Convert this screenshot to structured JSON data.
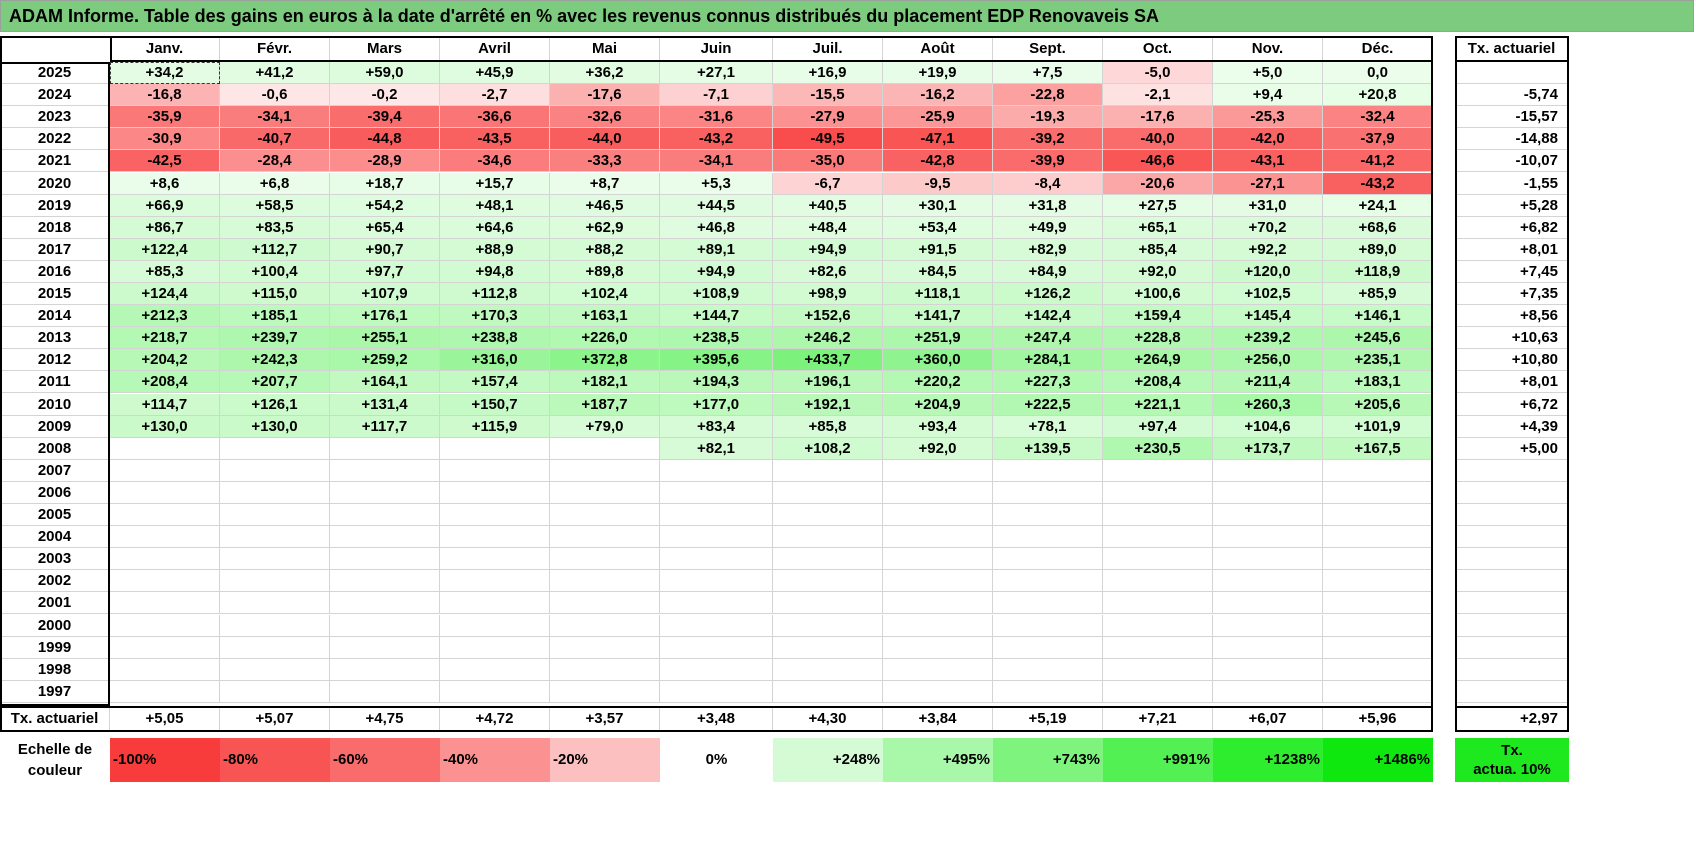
{
  "title": "ADAM Informe. Table des gains en euros à la date d'arrêté en % avec les revenus connus distribués du placement EDP Renovaveis SA",
  "months": [
    "Janv.",
    "Févr.",
    "Mars",
    "Avril",
    "Mai",
    "Juin",
    "Juil.",
    "Août",
    "Sept.",
    "Oct.",
    "Nov.",
    "Déc."
  ],
  "tx_header": "Tx. actuariel",
  "rows": [
    {
      "year": "2025",
      "values": [
        "+34,2",
        "+41,2",
        "+59,0",
        "+45,9",
        "+36,2",
        "+27,1",
        "+16,9",
        "+19,9",
        "+7,5",
        "-5,0",
        "+5,0",
        "0,0"
      ],
      "tx": ""
    },
    {
      "year": "2024",
      "values": [
        "-16,8",
        "-0,6",
        "-0,2",
        "-2,7",
        "-17,6",
        "-7,1",
        "-15,5",
        "-16,2",
        "-22,8",
        "-2,1",
        "+9,4",
        "+20,8"
      ],
      "tx": "-5,74"
    },
    {
      "year": "2023",
      "values": [
        "-35,9",
        "-34,1",
        "-39,4",
        "-36,6",
        "-32,6",
        "-31,6",
        "-27,9",
        "-25,9",
        "-19,3",
        "-17,6",
        "-25,3",
        "-32,4"
      ],
      "tx": "-15,57"
    },
    {
      "year": "2022",
      "values": [
        "-30,9",
        "-40,7",
        "-44,8",
        "-43,5",
        "-44,0",
        "-43,2",
        "-49,5",
        "-47,1",
        "-39,2",
        "-40,0",
        "-42,0",
        "-37,9"
      ],
      "tx": "-14,88"
    },
    {
      "year": "2021",
      "values": [
        "-42,5",
        "-28,4",
        "-28,9",
        "-34,6",
        "-33,3",
        "-34,1",
        "-35,0",
        "-42,8",
        "-39,9",
        "-46,6",
        "-43,1",
        "-41,2"
      ],
      "tx": "-10,07"
    },
    {
      "year": "2020",
      "values": [
        "+8,6",
        "+6,8",
        "+18,7",
        "+15,7",
        "+8,7",
        "+5,3",
        "-6,7",
        "-9,5",
        "-8,4",
        "-20,6",
        "-27,1",
        "-43,2"
      ],
      "tx": "-1,55"
    },
    {
      "year": "2019",
      "values": [
        "+66,9",
        "+58,5",
        "+54,2",
        "+48,1",
        "+46,5",
        "+44,5",
        "+40,5",
        "+30,1",
        "+31,8",
        "+27,5",
        "+31,0",
        "+24,1"
      ],
      "tx": "+5,28"
    },
    {
      "year": "2018",
      "values": [
        "+86,7",
        "+83,5",
        "+65,4",
        "+64,6",
        "+62,9",
        "+46,8",
        "+48,4",
        "+53,4",
        "+49,9",
        "+65,1",
        "+70,2",
        "+68,6"
      ],
      "tx": "+6,82"
    },
    {
      "year": "2017",
      "values": [
        "+122,4",
        "+112,7",
        "+90,7",
        "+88,9",
        "+88,2",
        "+89,1",
        "+94,9",
        "+91,5",
        "+82,9",
        "+85,4",
        "+92,2",
        "+89,0"
      ],
      "tx": "+8,01"
    },
    {
      "year": "2016",
      "values": [
        "+85,3",
        "+100,4",
        "+97,7",
        "+94,8",
        "+89,8",
        "+94,9",
        "+82,6",
        "+84,5",
        "+84,9",
        "+92,0",
        "+120,0",
        "+118,9"
      ],
      "tx": "+7,45"
    },
    {
      "year": "2015",
      "values": [
        "+124,4",
        "+115,0",
        "+107,9",
        "+112,8",
        "+102,4",
        "+108,9",
        "+98,9",
        "+118,1",
        "+126,2",
        "+100,6",
        "+102,5",
        "+85,9"
      ],
      "tx": "+7,35"
    },
    {
      "year": "2014",
      "values": [
        "+212,3",
        "+185,1",
        "+176,1",
        "+170,3",
        "+163,1",
        "+144,7",
        "+152,6",
        "+141,7",
        "+142,4",
        "+159,4",
        "+145,4",
        "+146,1"
      ],
      "tx": "+8,56"
    },
    {
      "year": "2013",
      "values": [
        "+218,7",
        "+239,7",
        "+255,1",
        "+238,8",
        "+226,0",
        "+238,5",
        "+246,2",
        "+251,9",
        "+247,4",
        "+228,8",
        "+239,2",
        "+245,6"
      ],
      "tx": "+10,63"
    },
    {
      "year": "2012",
      "values": [
        "+204,2",
        "+242,3",
        "+259,2",
        "+316,0",
        "+372,8",
        "+395,6",
        "+433,7",
        "+360,0",
        "+284,1",
        "+264,9",
        "+256,0",
        "+235,1"
      ],
      "tx": "+10,80"
    },
    {
      "year": "2011",
      "values": [
        "+208,4",
        "+207,7",
        "+164,1",
        "+157,4",
        "+182,1",
        "+194,3",
        "+196,1",
        "+220,2",
        "+227,3",
        "+208,4",
        "+211,4",
        "+183,1"
      ],
      "tx": "+8,01"
    },
    {
      "year": "2010",
      "values": [
        "+114,7",
        "+126,1",
        "+131,4",
        "+150,7",
        "+187,7",
        "+177,0",
        "+192,1",
        "+204,9",
        "+222,5",
        "+221,1",
        "+260,3",
        "+205,6"
      ],
      "tx": "+6,72"
    },
    {
      "year": "2009",
      "values": [
        "+130,0",
        "+130,0",
        "+117,7",
        "+115,9",
        "+79,0",
        "+83,4",
        "+85,8",
        "+93,4",
        "+78,1",
        "+97,4",
        "+104,6",
        "+101,9"
      ],
      "tx": "+4,39"
    },
    {
      "year": "2008",
      "values": [
        "",
        "",
        "",
        "",
        "",
        "+82,1",
        "+108,2",
        "+92,0",
        "+139,5",
        "+230,5",
        "+173,7",
        "+167,5"
      ],
      "tx": "+5,00"
    },
    {
      "year": "2007",
      "values": [
        "",
        "",
        "",
        "",
        "",
        "",
        "",
        "",
        "",
        "",
        "",
        ""
      ],
      "tx": ""
    },
    {
      "year": "2006",
      "values": [
        "",
        "",
        "",
        "",
        "",
        "",
        "",
        "",
        "",
        "",
        "",
        ""
      ],
      "tx": ""
    },
    {
      "year": "2005",
      "values": [
        "",
        "",
        "",
        "",
        "",
        "",
        "",
        "",
        "",
        "",
        "",
        ""
      ],
      "tx": ""
    },
    {
      "year": "2004",
      "values": [
        "",
        "",
        "",
        "",
        "",
        "",
        "",
        "",
        "",
        "",
        "",
        ""
      ],
      "tx": ""
    },
    {
      "year": "2003",
      "values": [
        "",
        "",
        "",
        "",
        "",
        "",
        "",
        "",
        "",
        "",
        "",
        ""
      ],
      "tx": ""
    },
    {
      "year": "2002",
      "values": [
        "",
        "",
        "",
        "",
        "",
        "",
        "",
        "",
        "",
        "",
        "",
        ""
      ],
      "tx": ""
    },
    {
      "year": "2001",
      "values": [
        "",
        "",
        "",
        "",
        "",
        "",
        "",
        "",
        "",
        "",
        "",
        ""
      ],
      "tx": ""
    },
    {
      "year": "2000",
      "values": [
        "",
        "",
        "",
        "",
        "",
        "",
        "",
        "",
        "",
        "",
        "",
        ""
      ],
      "tx": ""
    },
    {
      "year": "1999",
      "values": [
        "",
        "",
        "",
        "",
        "",
        "",
        "",
        "",
        "",
        "",
        "",
        ""
      ],
      "tx": ""
    },
    {
      "year": "1998",
      "values": [
        "",
        "",
        "",
        "",
        "",
        "",
        "",
        "",
        "",
        "",
        "",
        ""
      ],
      "tx": ""
    },
    {
      "year": "1997",
      "values": [
        "",
        "",
        "",
        "",
        "",
        "",
        "",
        "",
        "",
        "",
        "",
        ""
      ],
      "tx": ""
    }
  ],
  "footer": {
    "label": "Tx. actuariel",
    "values": [
      "+5,05",
      "+5,07",
      "+4,75",
      "+4,72",
      "+3,57",
      "+3,48",
      "+4,30",
      "+3,84",
      "+5,19",
      "+7,21",
      "+6,07",
      "+5,96"
    ],
    "tx": "+2,97"
  },
  "scale": {
    "label_line1": "Echelle de",
    "label_line2": "couleur",
    "items": [
      {
        "text": "-100%",
        "color": "#f83c3c"
      },
      {
        "text": "-80%",
        "color": "#f95454"
      },
      {
        "text": "-60%",
        "color": "#fa6c6c"
      },
      {
        "text": "-40%",
        "color": "#fb9191"
      },
      {
        "text": "-20%",
        "color": "#fcc0c0"
      },
      {
        "text": "0%",
        "color": "#ffffff"
      },
      {
        "text": "+248%",
        "color": "#d5fbd5"
      },
      {
        "text": "+495%",
        "color": "#a9f8a9"
      },
      {
        "text": "+743%",
        "color": "#7ef47e"
      },
      {
        "text": "+991%",
        "color": "#52f052"
      },
      {
        "text": "+1238%",
        "color": "#2eec2e"
      },
      {
        "text": "+1486%",
        "color": "#0fe80f"
      }
    ],
    "tx_line1": "Tx.",
    "tx_line2": "actua. 10%",
    "tx_color": "#1ee81e"
  },
  "colors": {
    "title_bg": "#7dcb7e",
    "neg_max": "#f83c3c",
    "pos_max": "#0fe80f",
    "neutral": "#ffffff"
  }
}
